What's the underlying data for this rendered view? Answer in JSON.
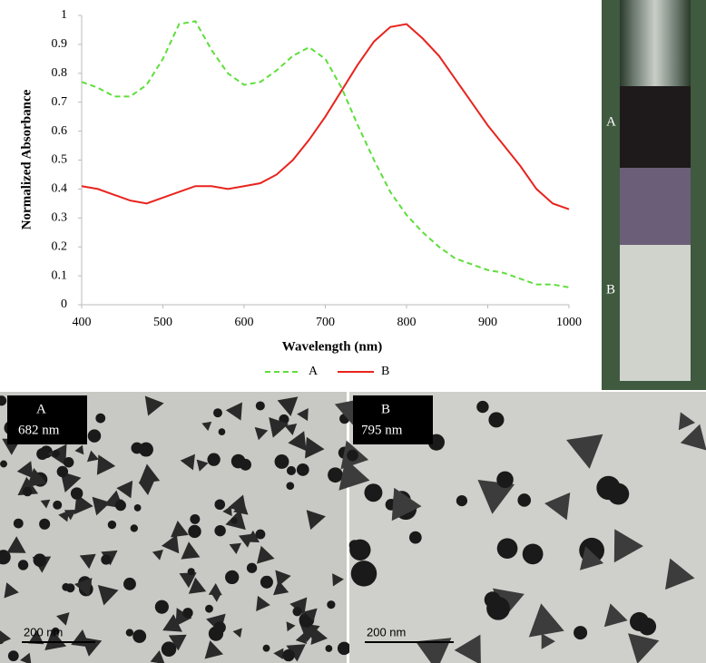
{
  "chart_data": {
    "type": "line",
    "x_label": "Wavelength (nm)",
    "y_label": "Normalized Absorbance",
    "x": [
      400,
      420,
      440,
      460,
      480,
      500,
      520,
      540,
      560,
      580,
      600,
      620,
      640,
      660,
      680,
      700,
      720,
      740,
      760,
      780,
      800,
      820,
      840,
      860,
      880,
      900,
      920,
      940,
      960,
      980,
      1000
    ],
    "series": [
      {
        "name": "A",
        "color": "#5ede3c",
        "dashed": true,
        "values": [
          0.77,
          0.75,
          0.72,
          0.72,
          0.76,
          0.85,
          0.97,
          0.98,
          0.88,
          0.8,
          0.76,
          0.77,
          0.81,
          0.86,
          0.89,
          0.85,
          0.75,
          0.62,
          0.5,
          0.39,
          0.31,
          0.25,
          0.2,
          0.16,
          0.14,
          0.12,
          0.11,
          0.09,
          0.07,
          0.07,
          0.06
        ]
      },
      {
        "name": "B",
        "color": "#e8241e",
        "dashed": false,
        "values": [
          0.41,
          0.4,
          0.38,
          0.36,
          0.35,
          0.37,
          0.39,
          0.41,
          0.41,
          0.4,
          0.41,
          0.42,
          0.45,
          0.5,
          0.57,
          0.65,
          0.74,
          0.83,
          0.91,
          0.96,
          0.97,
          0.92,
          0.86,
          0.78,
          0.7,
          0.62,
          0.55,
          0.48,
          0.4,
          0.35,
          0.33
        ]
      }
    ],
    "xlim": [
      400,
      1000
    ],
    "ylim": [
      0,
      1
    ],
    "xticks": [
      400,
      500,
      600,
      700,
      800,
      900,
      1000
    ],
    "yticks": [
      0,
      0.1,
      0.2,
      0.3,
      0.4,
      0.5,
      0.6,
      0.7,
      0.8,
      0.9,
      1
    ],
    "legend": "bottom"
  },
  "tube_photo": {
    "labels": [
      "A",
      "B"
    ]
  },
  "micrographs": [
    {
      "label": "A",
      "wavelength": "682 nm",
      "scale": "200 nm"
    },
    {
      "label": "B",
      "wavelength": "795 nm",
      "scale": "200 nm"
    }
  ]
}
